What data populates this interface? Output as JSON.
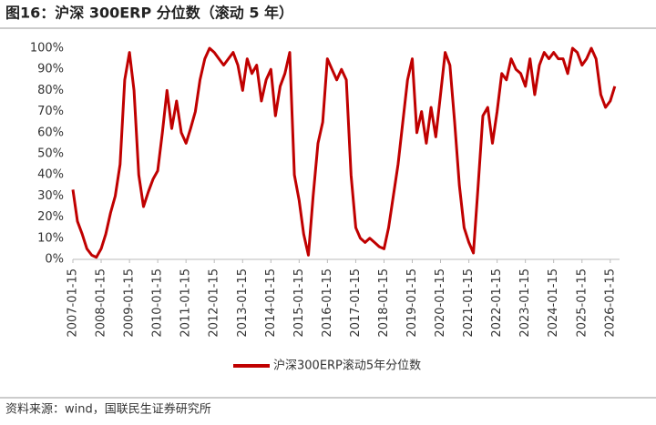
{
  "chart_data": {
    "type": "line",
    "title": "图16：沪深 300ERP 分位数（滚动 5 年）",
    "source": "资料来源：wind，国联民生证券研究所",
    "x": [
      "2007-01-15",
      "2007-03-15",
      "2007-05-15",
      "2007-07-15",
      "2007-09-15",
      "2007-11-15",
      "2008-01-15",
      "2008-03-15",
      "2008-05-15",
      "2008-07-15",
      "2008-09-15",
      "2008-11-15",
      "2009-01-15",
      "2009-03-15",
      "2009-05-15",
      "2009-07-15",
      "2009-09-15",
      "2009-11-15",
      "2010-01-15",
      "2010-03-15",
      "2010-05-15",
      "2010-07-15",
      "2010-09-15",
      "2010-11-15",
      "2011-01-15",
      "2011-03-15",
      "2011-05-15",
      "2011-07-15",
      "2011-09-15",
      "2011-11-15",
      "2012-01-15",
      "2012-03-15",
      "2012-05-15",
      "2012-07-15",
      "2012-09-15",
      "2012-11-15",
      "2013-01-15",
      "2013-03-15",
      "2013-05-15",
      "2013-07-15",
      "2013-09-15",
      "2013-11-15",
      "2014-01-15",
      "2014-03-15",
      "2014-05-15",
      "2014-07-15",
      "2014-09-15",
      "2014-11-15",
      "2015-01-15",
      "2015-03-15",
      "2015-05-15",
      "2015-07-15",
      "2015-09-15",
      "2015-11-15",
      "2016-01-15",
      "2016-03-15",
      "2016-05-15",
      "2016-07-15",
      "2016-09-15",
      "2016-11-15",
      "2017-01-15",
      "2017-03-15",
      "2017-05-15",
      "2017-07-15",
      "2017-09-15",
      "2017-11-15",
      "2018-01-15",
      "2018-03-15",
      "2018-05-15",
      "2018-07-15",
      "2018-09-15",
      "2018-11-15",
      "2019-01-15",
      "2019-03-15",
      "2019-05-15",
      "2019-07-15",
      "2019-09-15",
      "2019-11-15",
      "2020-01-15",
      "2020-03-15",
      "2020-05-15",
      "2020-07-15",
      "2020-09-15",
      "2020-11-15",
      "2021-01-15",
      "2021-03-15",
      "2021-05-15",
      "2021-07-15",
      "2021-09-15",
      "2021-11-15",
      "2022-01-15",
      "2022-03-15",
      "2022-05-15",
      "2022-07-15",
      "2022-09-15",
      "2022-11-15",
      "2023-01-15",
      "2023-03-15",
      "2023-05-15",
      "2023-07-15",
      "2023-09-15",
      "2023-11-15",
      "2024-01-15",
      "2024-03-15",
      "2024-05-15",
      "2024-07-15",
      "2024-09-15",
      "2024-11-15",
      "2025-01-15",
      "2025-03-15",
      "2025-05-15",
      "2025-07-15",
      "2025-09-15",
      "2025-11-15",
      "2026-01-15",
      "2026-03-15"
    ],
    "series": [
      {
        "name": "沪深300ERP滚动5年分位数",
        "color": "#c00000",
        "values": [
          33,
          18,
          12,
          5,
          2,
          1,
          5,
          12,
          22,
          30,
          45,
          85,
          98,
          80,
          40,
          25,
          32,
          38,
          42,
          60,
          80,
          62,
          75,
          60,
          55,
          62,
          70,
          85,
          95,
          100,
          98,
          95,
          92,
          95,
          98,
          92,
          80,
          95,
          88,
          92,
          75,
          85,
          90,
          68,
          82,
          88,
          98,
          40,
          28,
          12,
          2,
          30,
          55,
          65,
          95,
          90,
          85,
          90,
          85,
          40,
          15,
          10,
          8,
          10,
          8,
          6,
          5,
          15,
          30,
          45,
          65,
          85,
          95,
          60,
          70,
          55,
          72,
          58,
          78,
          98,
          92,
          65,
          35,
          15,
          8,
          3,
          35,
          68,
          72,
          55,
          70,
          88,
          85,
          95,
          90,
          88,
          82,
          95,
          78,
          92,
          98,
          95,
          98,
          95,
          95,
          88,
          100,
          98,
          92,
          95,
          100,
          95,
          78,
          72,
          75,
          82
        ]
      }
    ],
    "xlim": [
      "2007-01-15",
      "2026-05-15"
    ],
    "xticks": [
      "2007-01-15",
      "2008-01-15",
      "2009-01-15",
      "2010-01-15",
      "2011-01-15",
      "2012-01-15",
      "2013-01-15",
      "2014-01-15",
      "2015-01-15",
      "2016-01-15",
      "2017-01-15",
      "2018-01-15",
      "2019-01-15",
      "2020-01-15",
      "2021-01-15",
      "2022-01-15",
      "2023-01-15",
      "2024-01-15",
      "2025-01-15",
      "2026-01-15"
    ],
    "ylim": [
      0,
      100
    ],
    "yticks": [
      {
        "value": 0,
        "label": "0%"
      },
      {
        "value": 10,
        "label": "10%"
      },
      {
        "value": 20,
        "label": "20%"
      },
      {
        "value": 30,
        "label": "30%"
      },
      {
        "value": 40,
        "label": "40%"
      },
      {
        "value": 50,
        "label": "50%"
      },
      {
        "value": 60,
        "label": "60%"
      },
      {
        "value": 70,
        "label": "70%"
      },
      {
        "value": 80,
        "label": "80%"
      },
      {
        "value": 90,
        "label": "90%"
      },
      {
        "value": 100,
        "label": "100%"
      }
    ],
    "grid": false
  }
}
